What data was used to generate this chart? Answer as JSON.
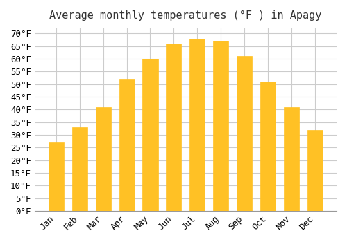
{
  "title": "Average monthly temperatures (°F ) in Apagy",
  "months": [
    "Jan",
    "Feb",
    "Mar",
    "Apr",
    "May",
    "Jun",
    "Jul",
    "Aug",
    "Sep",
    "Oct",
    "Nov",
    "Dec"
  ],
  "values": [
    27,
    33,
    41,
    52,
    60,
    66,
    68,
    67,
    61,
    51,
    41,
    32
  ],
  "bar_color_main": "#FFC125",
  "bar_color_edge": "#FFD700",
  "background_color": "#FFFFFF",
  "grid_color": "#CCCCCC",
  "ylim": [
    0,
    72
  ],
  "yticks": [
    0,
    5,
    10,
    15,
    20,
    25,
    30,
    35,
    40,
    45,
    50,
    55,
    60,
    65,
    70
  ],
  "title_fontsize": 11,
  "tick_fontsize": 9,
  "title_font": "monospace",
  "tick_font": "monospace"
}
